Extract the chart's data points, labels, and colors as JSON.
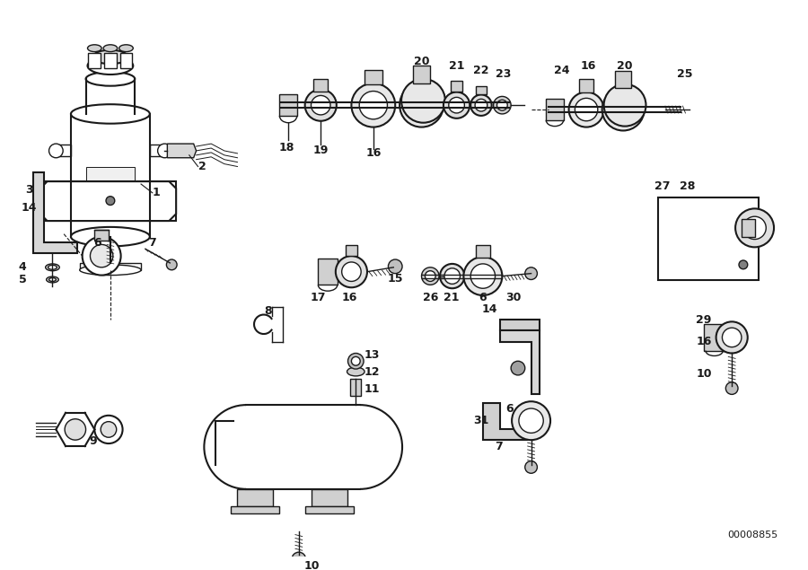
{
  "bg_color": "#ffffff",
  "line_color": "#1a1a1a",
  "fig_width": 9.0,
  "fig_height": 6.35,
  "dpi": 100,
  "watermark": "00008855"
}
